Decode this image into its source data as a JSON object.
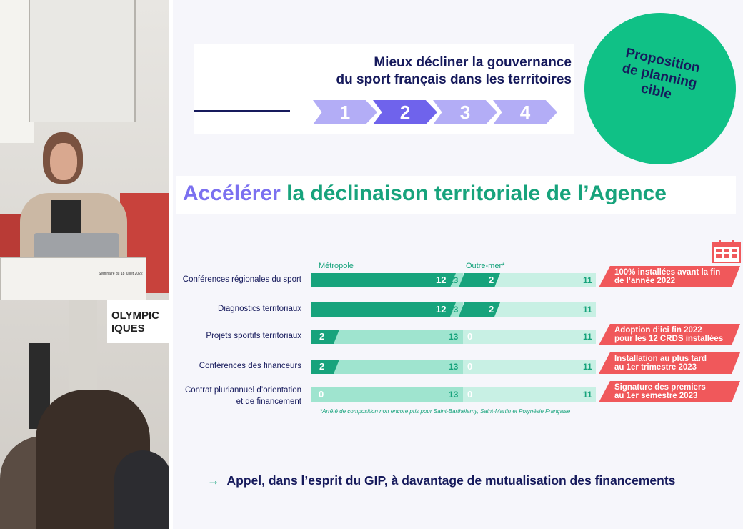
{
  "photo": {
    "signage": "OLYMPIC\nIQUES",
    "podium_label": "Séminaire du 18 juillet 2022"
  },
  "header": {
    "title_line1": "Mieux décliner la gouvernance",
    "title_line2": "du sport français dans les territoires",
    "steps": [
      "1",
      "2",
      "3",
      "4"
    ],
    "active_step": "2"
  },
  "badge": {
    "line1": "Proposition",
    "line2": "de planning",
    "line3": "cible"
  },
  "title": {
    "accent": "Accélérer",
    "rest": " la déclinaison territoriale de l’Agence"
  },
  "icons": {
    "calendar": "calendar-icon"
  },
  "legend": {
    "metropole": "Métropole",
    "outremer": "Outre-mer*"
  },
  "rows": [
    {
      "label_line1": "Conférences régionales du sport",
      "label_line2": "",
      "metro_done": "12",
      "metro_total": "13",
      "om_done": "2",
      "om_total": "11",
      "note_line1": "100% installées avant la fin",
      "note_line2": "de l’année 2022"
    },
    {
      "label_line1": "Diagnostics territoriaux",
      "label_line2": "",
      "metro_done": "12",
      "metro_total": "13",
      "om_done": "2",
      "om_total": "11",
      "note_line1": "",
      "note_line2": ""
    },
    {
      "label_line1": "Projets sportifs territoriaux",
      "label_line2": "",
      "metro_done": "2",
      "metro_total": "13",
      "om_done": "0",
      "om_total": "11",
      "note_line1": "Adoption d’ici fin 2022",
      "note_line2": "pour les 12 CRDS installées"
    },
    {
      "label_line1": "Conférences des financeurs",
      "label_line2": "",
      "metro_done": "2",
      "metro_total": "13",
      "om_done": "0",
      "om_total": "11",
      "note_line1": "Installation au plus tard",
      "note_line2": "au 1er trimestre 2023"
    },
    {
      "label_line1": "Contrat pluriannuel d’orientation",
      "label_line2": "et de financement",
      "metro_done": "0",
      "metro_total": "13",
      "om_done": "0",
      "om_total": "11",
      "note_line1": "Signature des premiers",
      "note_line2": "au 1er semestre 2023"
    }
  ],
  "footnote": "*Arrêté de composition non encore pris pour Saint-Barthélemy, Saint-Martin et Polynésie Française",
  "call": {
    "arrow": "→",
    "text": "Appel, dans l’esprit du GIP, à davantage de mutualisation des financements"
  },
  "colors": {
    "navy": "#161a5c",
    "green": "#17a37c",
    "green_dark": "#10c186",
    "mint": "#9fe4cf",
    "mint_light": "#c8f0e4",
    "purple": "#7b70f0",
    "red": "#f0585b"
  }
}
